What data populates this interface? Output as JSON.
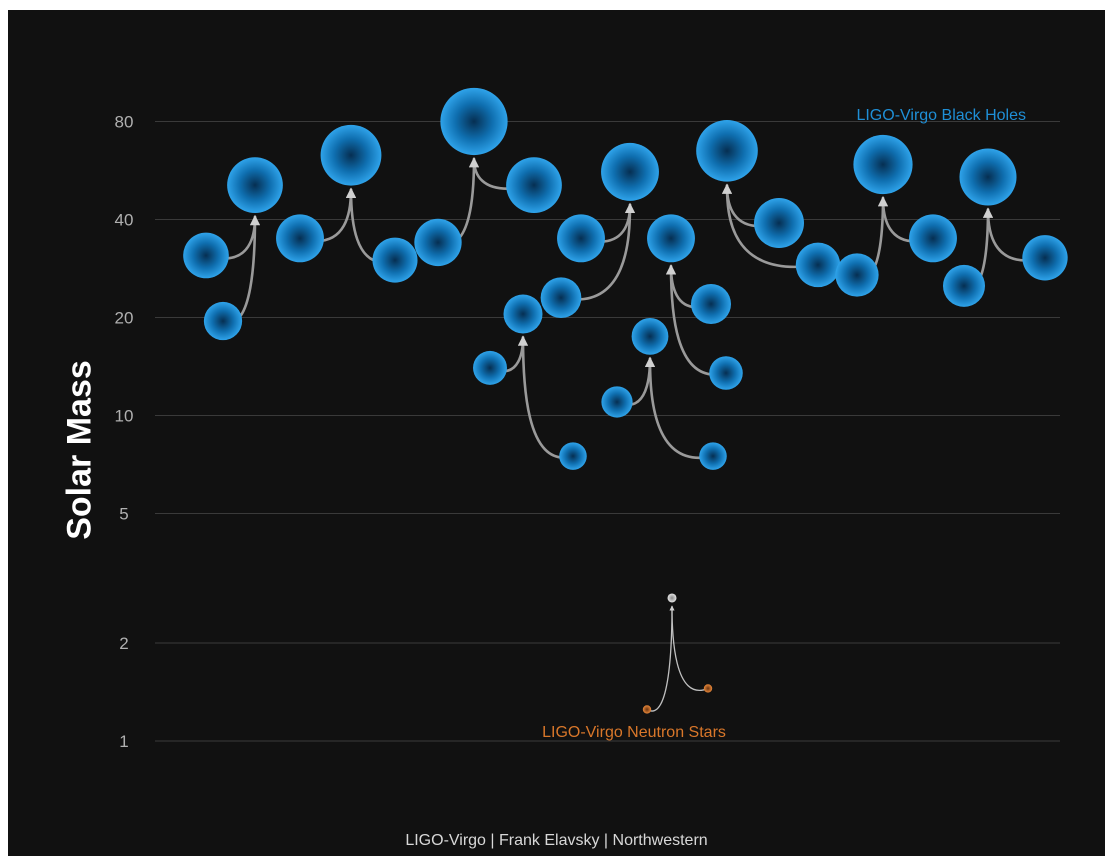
{
  "chart_data": {
    "type": "scatter",
    "title": "",
    "xlabel": "",
    "ylabel": "Solar Mass",
    "yscale": "log",
    "ylim": [
      0.8,
      100
    ],
    "y_ticks": [
      1,
      2,
      5,
      10,
      20,
      40,
      80
    ],
    "grid": true,
    "credit": "LIGO-Virgo | Frank Elavsky | Northwestern",
    "colors": {
      "black_hole": "#1f8fd6",
      "neutron_star": "#d9772a",
      "ns_remnant": "#c8c8c8",
      "arrow": "#9a9a9a",
      "grid": "#3a3a3a"
    },
    "series": [
      {
        "name": "LIGO-Virgo Black Holes",
        "color": "#1f8fd6",
        "events": [
          {
            "primary": 31,
            "secondary": 19.5,
            "final": 51
          },
          {
            "primary": 35,
            "secondary": 30,
            "final": 63
          },
          {
            "primary": 34,
            "secondary": 51,
            "final": 80
          },
          {
            "primary": 14,
            "secondary": 7.5,
            "final": 20.5
          },
          {
            "primary": 23,
            "secondary": 35,
            "final": 56
          },
          {
            "primary": 11,
            "secondary": 7.5,
            "final": 17.5
          },
          {
            "primary": 22,
            "secondary": 13.5,
            "final": 35
          },
          {
            "primary": 39,
            "secondary": 29,
            "final": 65
          },
          {
            "primary": 27,
            "secondary": 35,
            "final": 59
          },
          {
            "primary": 25,
            "secondary": 30.5,
            "final": 54
          }
        ]
      },
      {
        "name": "LIGO-Virgo Neutron Stars",
        "color": "#d9772a",
        "events": [
          {
            "primary": 1.25,
            "secondary": 1.45,
            "final": 2.75
          }
        ]
      }
    ]
  }
}
